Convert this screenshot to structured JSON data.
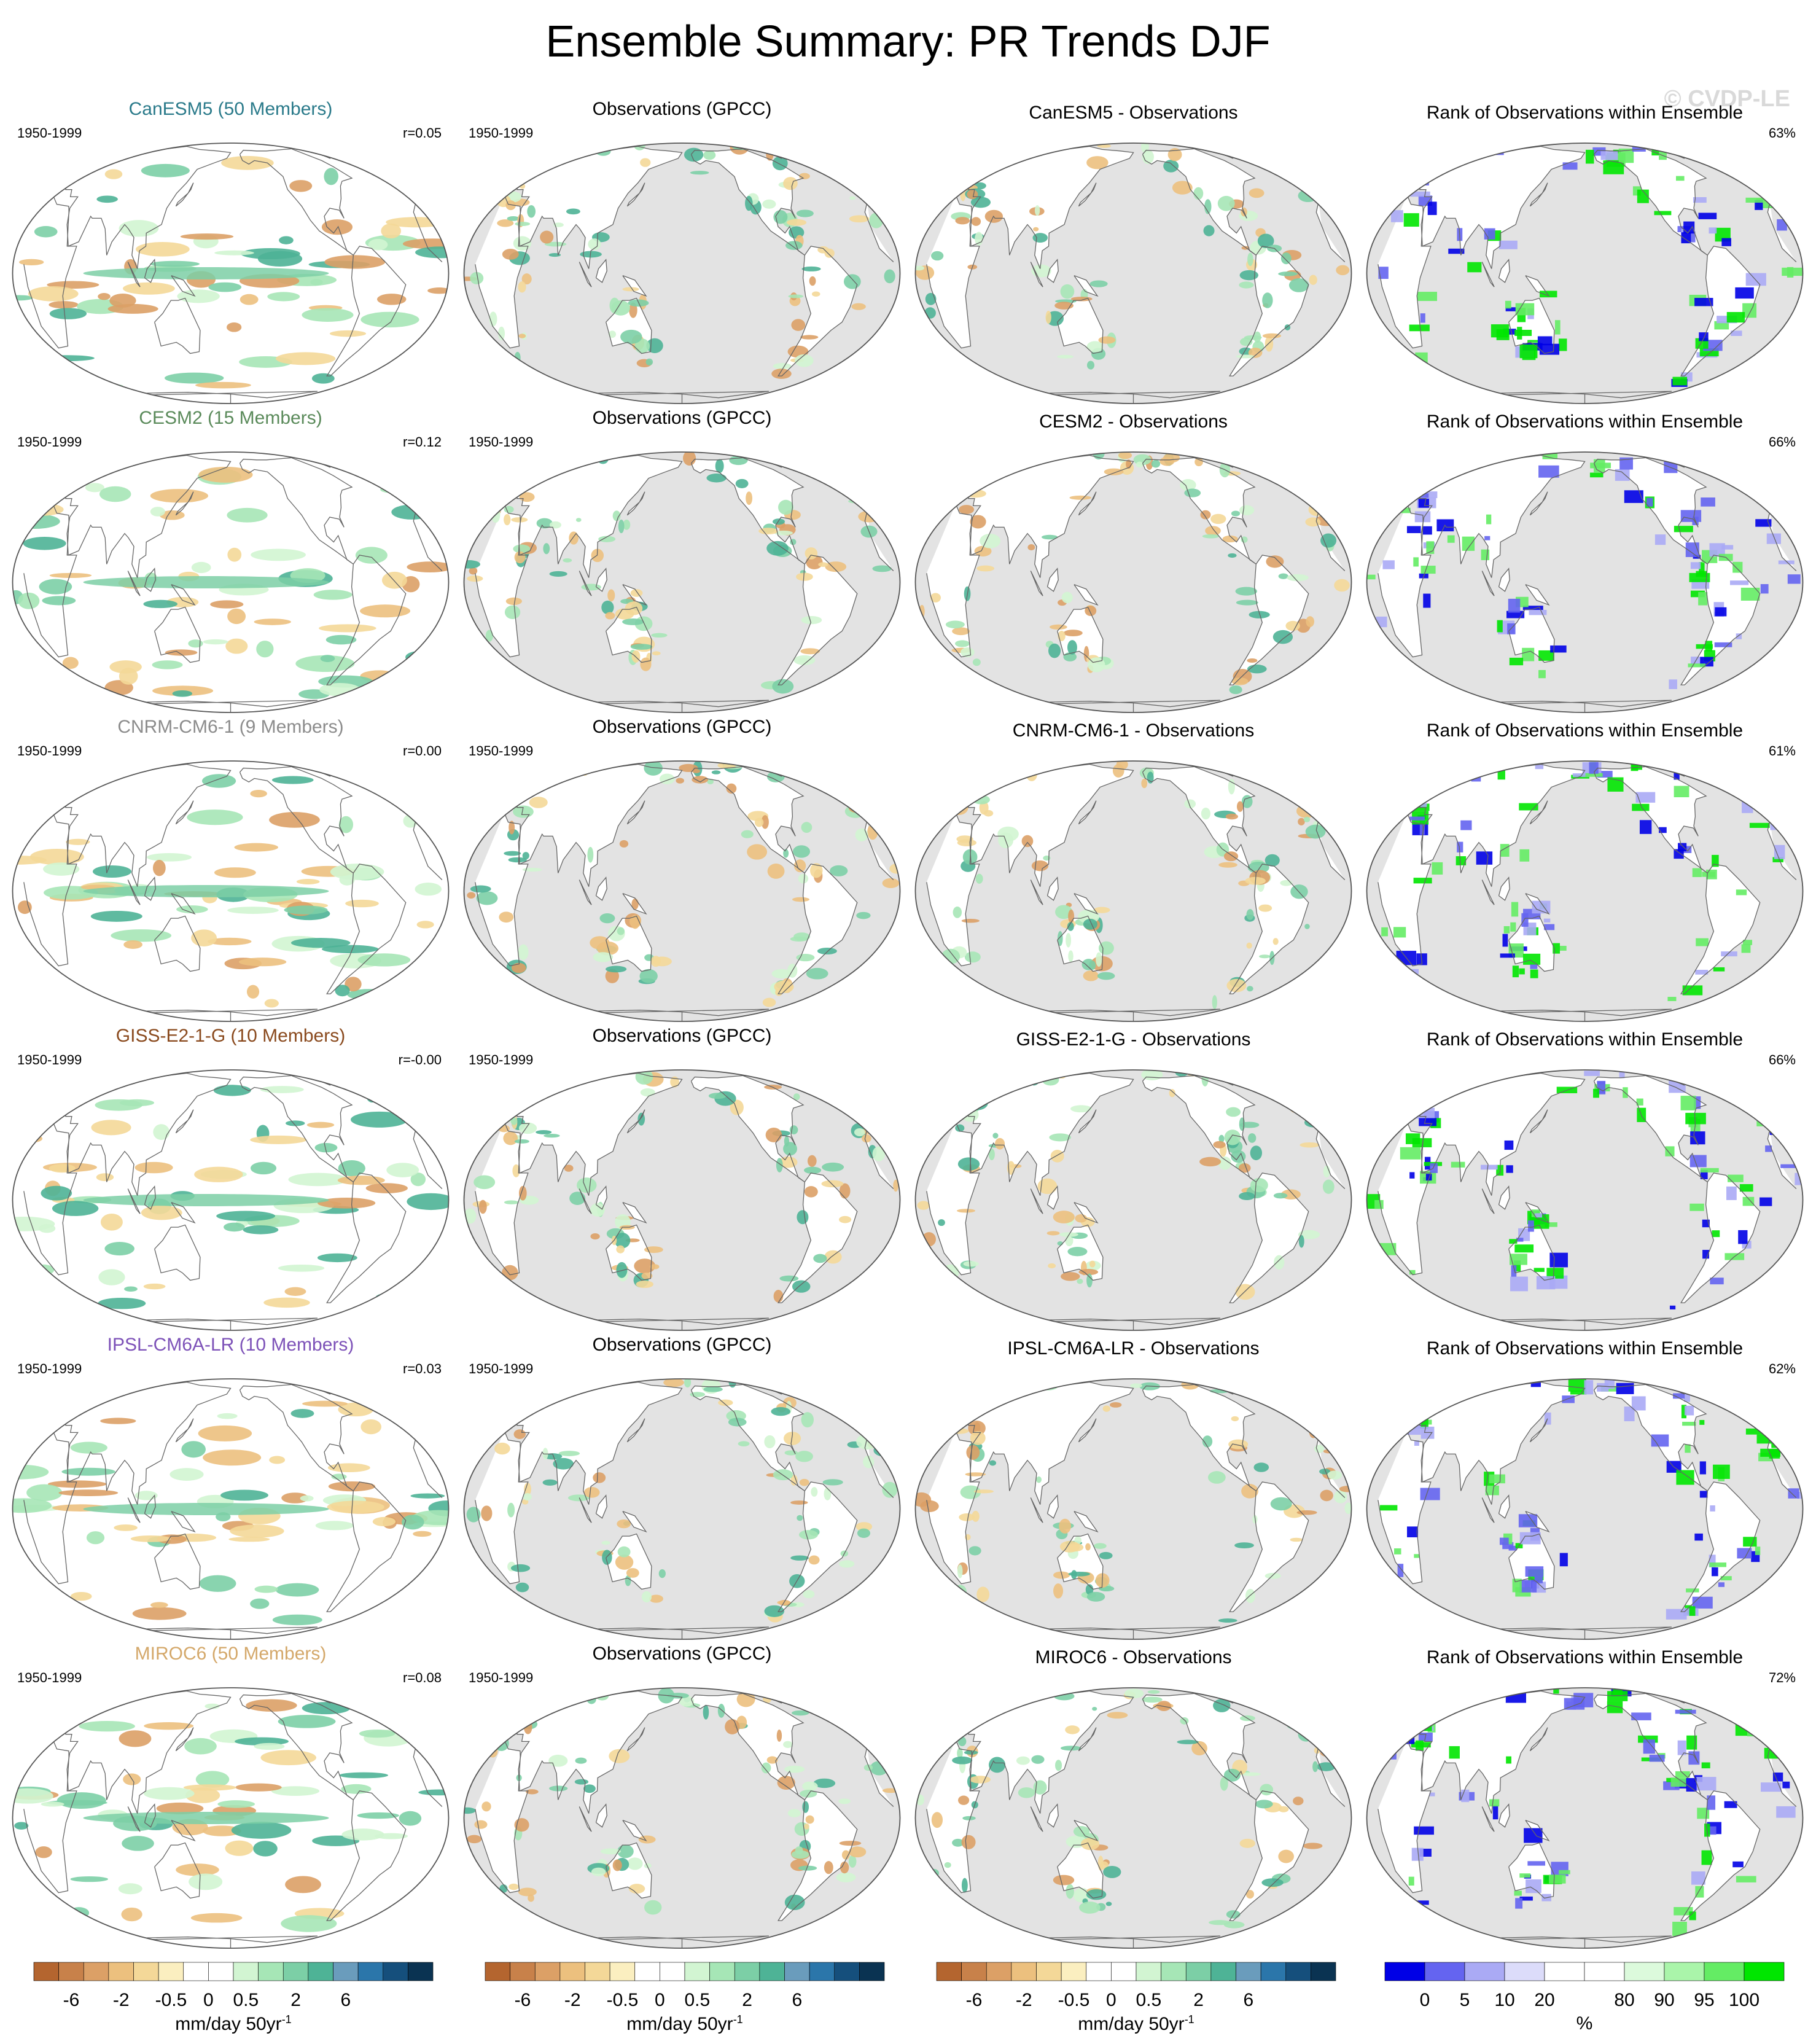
{
  "title": "Ensemble Summary: PR Trends DJF",
  "watermark": "© CVDP-LE",
  "rows": [
    {
      "model": "CanESM5 (50 Members)",
      "model_color": "#2a7a8a",
      "period": "1950-1999",
      "r": "r=0.05",
      "obs_title": "Observations (GPCC)",
      "diff_title": "CanESM5 - Observations",
      "rank_title": "Rank of Observations within Ensemble",
      "rank_pct": "63%"
    },
    {
      "model": "CESM2 (15 Members)",
      "model_color": "#5a8a5a",
      "period": "1950-1999",
      "r": "r=0.12",
      "obs_title": "Observations (GPCC)",
      "diff_title": "CESM2 - Observations",
      "rank_title": "Rank of Observations within Ensemble",
      "rank_pct": "66%"
    },
    {
      "model": "CNRM-CM6-1 (9 Members)",
      "model_color": "#8c8c8c",
      "period": "1950-1999",
      "r": "r=0.00",
      "obs_title": "Observations (GPCC)",
      "diff_title": "CNRM-CM6-1 - Observations",
      "rank_title": "Rank of Observations within Ensemble",
      "rank_pct": "61%"
    },
    {
      "model": "GISS-E2-1-G (10 Members)",
      "model_color": "#8a4a1e",
      "period": "1950-1999",
      "r": "r=-0.00",
      "obs_title": "Observations (GPCC)",
      "diff_title": "GISS-E2-1-G - Observations",
      "rank_title": "Rank of Observations within Ensemble",
      "rank_pct": "66%"
    },
    {
      "model": "IPSL-CM6A-LR (10 Members)",
      "model_color": "#7d52b8",
      "period": "1950-1999",
      "r": "r=0.03",
      "obs_title": "Observations (GPCC)",
      "diff_title": "IPSL-CM6A-LR - Observations",
      "rank_title": "Rank of Observations within Ensemble",
      "rank_pct": "62%"
    },
    {
      "model": "MIROC6 (50 Members)",
      "model_color": "#d4a86a",
      "period": "1950-1999",
      "r": "r=0.08",
      "obs_title": "Observations (GPCC)",
      "diff_title": "MIROC6 - Observations",
      "rank_title": "Rank of Observations within Ensemble",
      "rank_pct": "72%"
    }
  ],
  "trend_colorbar": {
    "colors": [
      "#b4652f",
      "#c8814a",
      "#dca066",
      "#ecc07e",
      "#f4d898",
      "#fbefc0",
      "#ffffff",
      "#ffffff",
      "#d2f5d2",
      "#a6e6b6",
      "#7ccfa6",
      "#4eb396",
      "#6a9cbc",
      "#2b76aa",
      "#154f7c",
      "#0a3352"
    ],
    "ticks": [
      "-6",
      "-2",
      "-0.5",
      "0",
      "0.5",
      "2",
      "6"
    ],
    "label": "mm/day 50yr",
    "label_sup": "-1"
  },
  "rank_colorbar": {
    "colors": [
      "#0000e6",
      "#6464f0",
      "#aaaaf5",
      "#dcdcfa",
      "#ffffff",
      "#ffffff",
      "#dcfadc",
      "#aaf5aa",
      "#64ec64",
      "#00e600"
    ],
    "ticks": [
      "0",
      "5",
      "10",
      "20",
      "80",
      "90",
      "95",
      "100"
    ],
    "label": "%"
  }
}
